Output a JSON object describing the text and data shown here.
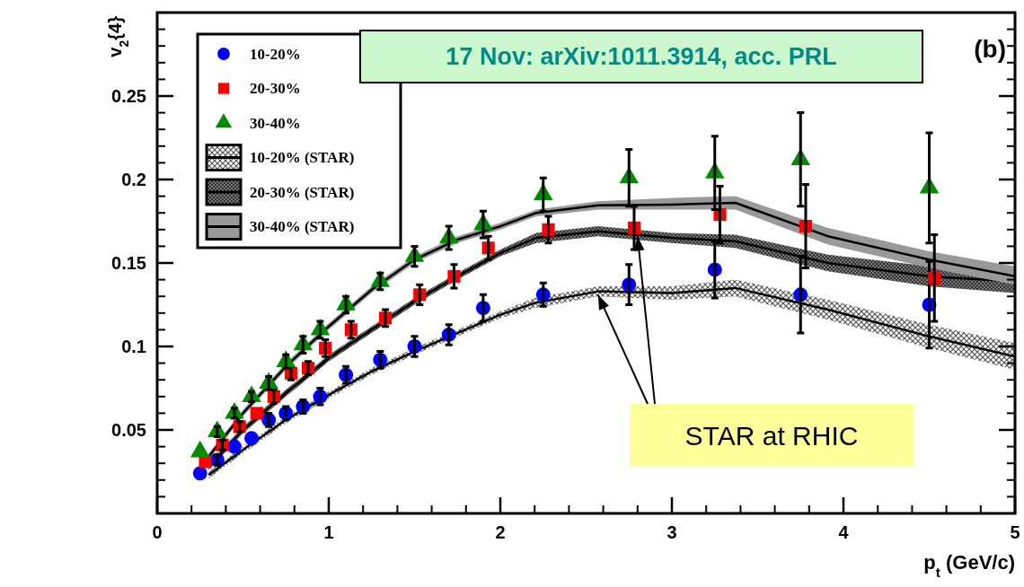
{
  "chart_data": {
    "type": "scatter",
    "xlabel": "p$_{t}$ (GeV/c)",
    "ylabel": "v$_{2}${4}",
    "xlim": [
      0,
      5
    ],
    "ylim": [
      0,
      0.3
    ],
    "xticks": [
      0,
      1,
      2,
      3,
      4,
      5
    ],
    "yticks": [
      0.05,
      0.1,
      0.15,
      0.2,
      0.25
    ],
    "legend": "top left",
    "grid": false,
    "annotations": [
      "17 Nov:  arXiv:1011.3914, acc. PRL",
      "(b)",
      {
        "text": "STAR at RHIC",
        "x": 2.8,
        "y": 0.166
      }
    ],
    "series": [
      {
        "name": "10-20%",
        "marker": "circle",
        "color": "#0000ff",
        "x": [
          0.25,
          0.35,
          0.45,
          0.55,
          0.65,
          0.75,
          0.85,
          0.95,
          1.1,
          1.3,
          1.5,
          1.7,
          1.9,
          2.25,
          2.75,
          3.25,
          3.75,
          4.5
        ],
        "values": [
          0.024,
          0.032,
          0.04,
          0.045,
          0.056,
          0.06,
          0.064,
          0.07,
          0.083,
          0.092,
          0.1,
          0.107,
          0.123,
          0.131,
          0.137,
          0.146,
          0.131,
          0.125
        ],
        "errors": [
          null,
          0.003,
          null,
          null,
          0.004,
          0.004,
          0.004,
          0.005,
          0.005,
          0.005,
          0.006,
          0.006,
          0.008,
          0.007,
          0.012,
          0.017,
          0.023,
          0.026
        ]
      },
      {
        "name": "20-30%",
        "marker": "square",
        "color": "#ff0000",
        "x": [
          0.28,
          0.38,
          0.48,
          0.58,
          0.68,
          0.78,
          0.88,
          0.98,
          1.13,
          1.33,
          1.53,
          1.73,
          1.93,
          2.28,
          2.78,
          3.28,
          3.78,
          4.53
        ],
        "values": [
          0.031,
          0.041,
          0.052,
          0.06,
          0.07,
          0.084,
          0.087,
          0.099,
          0.11,
          0.117,
          0.131,
          0.142,
          0.159,
          0.17,
          0.171,
          0.179,
          0.172,
          0.141
        ],
        "errors": [
          null,
          0.003,
          0.003,
          null,
          0.004,
          0.004,
          0.004,
          0.005,
          0.005,
          0.005,
          0.006,
          0.007,
          0.007,
          0.008,
          0.013,
          0.017,
          0.025,
          0.026
        ]
      },
      {
        "name": "30-40%",
        "marker": "triangle",
        "color": "#008c00",
        "x": [
          0.25,
          0.35,
          0.45,
          0.55,
          0.65,
          0.75,
          0.85,
          0.95,
          1.1,
          1.3,
          1.5,
          1.7,
          1.9,
          2.25,
          2.75,
          3.25,
          3.75,
          4.5
        ],
        "values": [
          0.037,
          0.049,
          0.06,
          0.07,
          0.078,
          0.091,
          0.101,
          0.11,
          0.125,
          0.139,
          0.154,
          0.165,
          0.173,
          0.191,
          0.201,
          0.204,
          0.212,
          0.195
        ],
        "errors": [
          null,
          0.003,
          0.003,
          0.003,
          0.004,
          0.004,
          0.005,
          0.005,
          0.005,
          0.005,
          0.006,
          0.007,
          0.008,
          0.01,
          0.017,
          0.022,
          0.028,
          0.033
        ]
      },
      {
        "name": "10-20% (STAR)",
        "type": "line",
        "marker": "none",
        "color": "#000000",
        "x": [
          0.3,
          0.5,
          0.75,
          1,
          1.25,
          1.5,
          1.75,
          2,
          2.2,
          2.57,
          3,
          3.37,
          3.91,
          4.5,
          5
        ],
        "values": [
          0.023,
          0.038,
          0.056,
          0.071,
          0.085,
          0.097,
          0.108,
          0.119,
          0.126,
          0.133,
          0.132,
          0.135,
          0.122,
          0.106,
          0.094
        ],
        "lower": [
          0.021,
          0.036,
          0.054,
          0.069,
          0.083,
          0.095,
          0.106,
          0.117,
          0.123,
          0.13,
          0.128,
          0.13,
          0.116,
          0.099,
          0.086
        ],
        "upper": [
          0.025,
          0.04,
          0.058,
          0.073,
          0.087,
          0.099,
          0.11,
          0.121,
          0.129,
          0.136,
          0.136,
          0.14,
          0.128,
          0.113,
          0.102
        ]
      },
      {
        "name": "20-30% (STAR)",
        "type": "line",
        "marker": "none",
        "color": "#000000",
        "x": [
          0.3,
          0.5,
          0.75,
          1,
          1.25,
          1.5,
          1.75,
          2,
          2.21,
          2.57,
          3,
          3.37,
          3.91,
          4.5,
          5
        ],
        "values": [
          0.028,
          0.05,
          0.072,
          0.093,
          0.11,
          0.127,
          0.142,
          0.156,
          0.165,
          0.169,
          0.165,
          0.163,
          0.15,
          0.142,
          0.139
        ],
        "lower": [
          0.026,
          0.048,
          0.07,
          0.091,
          0.108,
          0.125,
          0.14,
          0.154,
          0.162,
          0.166,
          0.162,
          0.159,
          0.145,
          0.136,
          0.132
        ],
        "upper": [
          0.03,
          0.052,
          0.074,
          0.095,
          0.112,
          0.129,
          0.144,
          0.158,
          0.168,
          0.172,
          0.168,
          0.167,
          0.155,
          0.148,
          0.146
        ]
      },
      {
        "name": "30-40% (STAR)",
        "type": "line",
        "marker": "none",
        "color": "#000000",
        "x": [
          0.3,
          0.5,
          0.75,
          1,
          1.25,
          1.5,
          1.75,
          2,
          2.21,
          2.57,
          3,
          3.37,
          3.91,
          4.5,
          5
        ],
        "values": [
          0.034,
          0.06,
          0.088,
          0.112,
          0.134,
          0.152,
          0.164,
          0.172,
          0.18,
          0.1845,
          0.185,
          0.186,
          0.166,
          0.152,
          0.142
        ],
        "lower": [
          0.032,
          0.058,
          0.086,
          0.11,
          0.132,
          0.15,
          0.162,
          0.17,
          0.178,
          0.182,
          0.182,
          0.182,
          0.161,
          0.147,
          0.137
        ],
        "upper": [
          0.036,
          0.062,
          0.09,
          0.114,
          0.136,
          0.154,
          0.166,
          0.174,
          0.182,
          0.187,
          0.189,
          0.19,
          0.171,
          0.157,
          0.148
        ]
      }
    ]
  }
}
